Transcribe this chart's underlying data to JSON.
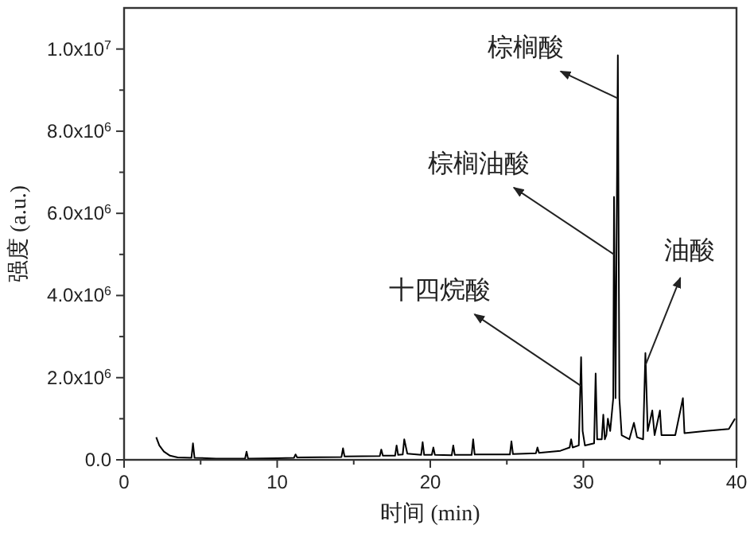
{
  "chart_data": {
    "type": "line",
    "xlabel": "时间 (min)",
    "ylabel": "强度 (a.u.)",
    "xlim": [
      0,
      40
    ],
    "ylim": [
      0,
      11000000
    ],
    "xticks": [
      0,
      {
        "value": 5,
        "label": null
      },
      10,
      {
        "value": 15,
        "label": null
      },
      20,
      {
        "value": 25,
        "label": null
      },
      30,
      {
        "value": 35,
        "label": null
      },
      40
    ],
    "yticks": [
      {
        "value": 0,
        "label": "0.0"
      },
      {
        "value": 1000000,
        "label": null
      },
      {
        "value": 2000000,
        "label": "2.0x10$^{6}$"
      },
      {
        "value": 3000000,
        "label": null
      },
      {
        "value": 4000000,
        "label": "4.0x10$^{6}$"
      },
      {
        "value": 5000000,
        "label": null
      },
      {
        "value": 6000000,
        "label": "6.0x10$^{6}$"
      },
      {
        "value": 7000000,
        "label": null
      },
      {
        "value": 8000000,
        "label": "8.0x10$^{6}$"
      },
      {
        "value": 9000000,
        "label": null
      },
      {
        "value": 10000000,
        "label": "1.0x10$^{7}$"
      }
    ],
    "grid": false,
    "marker": "none",
    "line_style": "solid",
    "annotations": [
      {
        "text": "棕榈酸",
        "x": 32.25,
        "y": 8800000
      },
      {
        "text": "棕榈油酸",
        "x": 32.0,
        "y": 5000000
      },
      {
        "text": "十四烷酸",
        "x": 29.85,
        "y": 1800000
      },
      {
        "text": "油酸",
        "x": 34.05,
        "y": 2300000
      }
    ],
    "series": [
      {
        "color": "#000000",
        "x": [
          2.1,
          2.3,
          2.6,
          3.0,
          3.5,
          4.4,
          4.5,
          4.6,
          6,
          7.9,
          8.0,
          8.1,
          10,
          11.1,
          11.2,
          11.3,
          14.2,
          14.3,
          14.4,
          16.7,
          16.8,
          16.9,
          17.7,
          17.8,
          17.9,
          18.2,
          18.3,
          18.5,
          19.4,
          19.5,
          19.6,
          20.1,
          20.2,
          20.3,
          21.4,
          21.5,
          21.6,
          22.7,
          22.8,
          22.9,
          25.2,
          25.3,
          25.4,
          26.9,
          27.0,
          27.1,
          28.5,
          29.1,
          29.2,
          29.3,
          29.7,
          29.85,
          29.95,
          30.1,
          30.7,
          30.8,
          30.9,
          31.2,
          31.3,
          31.4,
          31.5,
          31.6,
          31.75,
          31.95,
          32.0,
          32.1,
          32.2,
          32.25,
          32.35,
          32.5,
          33.0,
          33.3,
          33.5,
          33.9,
          34.05,
          34.2,
          34.5,
          34.65,
          35.0,
          35.1,
          36.0,
          36.5,
          36.6,
          38.0,
          39.5,
          39.9
        ],
        "values": [
          550000,
          350000,
          200000,
          100000,
          60000,
          50000,
          400000,
          50000,
          30000,
          30000,
          200000,
          30000,
          40000,
          50000,
          130000,
          60000,
          70000,
          280000,
          80000,
          90000,
          250000,
          100000,
          100000,
          350000,
          120000,
          130000,
          500000,
          150000,
          120000,
          430000,
          120000,
          120000,
          300000,
          120000,
          110000,
          350000,
          120000,
          120000,
          500000,
          130000,
          130000,
          450000,
          140000,
          160000,
          300000,
          170000,
          220000,
          300000,
          500000,
          300000,
          350000,
          2500000,
          700000,
          350000,
          400000,
          2100000,
          500000,
          500000,
          1100000,
          500000,
          600000,
          1000000,
          700000,
          1500000,
          6400000,
          1500000,
          7100000,
          9850000,
          1500000,
          600000,
          500000,
          900000,
          550000,
          500000,
          2600000,
          700000,
          1200000,
          600000,
          1200000,
          600000,
          600000,
          1500000,
          650000,
          700000,
          750000,
          1000000
        ]
      }
    ]
  }
}
